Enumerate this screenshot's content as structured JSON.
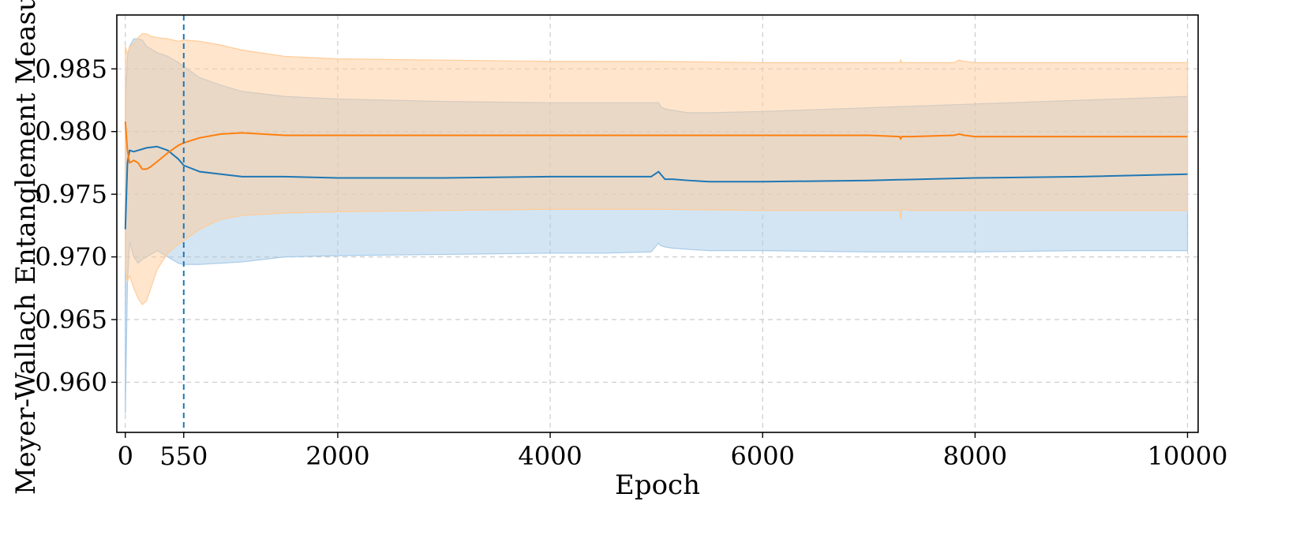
{
  "chart_data": {
    "type": "line",
    "title": "",
    "xlabel": "Epoch",
    "ylabel": "Meyer-Wallach Entanglement Measure",
    "xlim": [
      -80,
      10100
    ],
    "ylim": [
      0.956,
      0.9893
    ],
    "x_ticks": [
      0,
      550,
      2000,
      4000,
      6000,
      8000,
      10000
    ],
    "x_tick_labels": [
      "0",
      "550",
      "2000",
      "4000",
      "6000",
      "8000",
      "10000"
    ],
    "y_ticks": [
      0.96,
      0.965,
      0.97,
      0.975,
      0.98,
      0.985
    ],
    "y_tick_labels": [
      "0.960",
      "0.965",
      "0.970",
      "0.975",
      "0.980",
      "0.985"
    ],
    "grid": true,
    "vline": {
      "x": 550,
      "color": "#1f77b4",
      "style": "dashed"
    },
    "series": [
      {
        "color": "#1f77b4",
        "band_color": "#a8cbe8",
        "x": [
          0,
          20,
          40,
          80,
          120,
          160,
          200,
          300,
          400,
          500,
          550,
          700,
          900,
          1100,
          1500,
          2000,
          3000,
          4000,
          4500,
          4950,
          5020,
          5040,
          5080,
          5150,
          5300,
          5500,
          6000,
          7000,
          8000,
          9000,
          10000
        ],
        "mean": [
          0.9722,
          0.9775,
          0.9785,
          0.9784,
          0.9785,
          0.9786,
          0.9787,
          0.9788,
          0.9785,
          0.9778,
          0.9773,
          0.9768,
          0.9766,
          0.9764,
          0.9764,
          0.9763,
          0.9763,
          0.9764,
          0.9764,
          0.9764,
          0.9768,
          0.9766,
          0.9762,
          0.9762,
          0.9761,
          0.976,
          0.976,
          0.9761,
          0.9763,
          0.9764,
          0.9766
        ],
        "upper": [
          0.982,
          0.986,
          0.9868,
          0.9874,
          0.9874,
          0.9873,
          0.9868,
          0.9863,
          0.986,
          0.9855,
          0.9852,
          0.9843,
          0.9837,
          0.9832,
          0.9828,
          0.9826,
          0.9824,
          0.9823,
          0.9823,
          0.9823,
          0.9823,
          0.982,
          0.9818,
          0.9817,
          0.9815,
          0.9815,
          0.9816,
          0.9819,
          0.9822,
          0.9825,
          0.9828
        ],
        "lower": [
          0.9575,
          0.968,
          0.9712,
          0.97,
          0.9695,
          0.9698,
          0.97,
          0.9705,
          0.97,
          0.9695,
          0.9694,
          0.9694,
          0.9695,
          0.9696,
          0.97,
          0.9701,
          0.9702,
          0.9703,
          0.9703,
          0.9704,
          0.9711,
          0.9709,
          0.9708,
          0.9707,
          0.9706,
          0.9705,
          0.9705,
          0.9704,
          0.9704,
          0.9705,
          0.9705
        ]
      },
      {
        "color": "#ff7f0e",
        "band_color": "#ffcc99",
        "x": [
          0,
          20,
          40,
          80,
          120,
          160,
          200,
          240,
          300,
          400,
          500,
          550,
          700,
          900,
          1100,
          1500,
          2000,
          3000,
          4000,
          5000,
          6000,
          7000,
          7290,
          7300,
          7310,
          7400,
          7800,
          7850,
          7900,
          8000,
          9000,
          10000
        ],
        "mean": [
          0.9808,
          0.9785,
          0.9775,
          0.9777,
          0.9775,
          0.977,
          0.977,
          0.9772,
          0.9776,
          0.9783,
          0.9789,
          0.9791,
          0.9795,
          0.9798,
          0.9799,
          0.9797,
          0.9797,
          0.9797,
          0.9797,
          0.9797,
          0.9797,
          0.9797,
          0.9796,
          0.9794,
          0.9796,
          0.9796,
          0.9797,
          0.9798,
          0.9797,
          0.9796,
          0.9796,
          0.9796
        ],
        "upper": [
          0.9868,
          0.9862,
          0.9868,
          0.987,
          0.9875,
          0.9878,
          0.9878,
          0.9876,
          0.9875,
          0.9874,
          0.9872,
          0.9873,
          0.9872,
          0.9869,
          0.9865,
          0.986,
          0.9858,
          0.9857,
          0.9856,
          0.9856,
          0.9855,
          0.9855,
          0.9855,
          0.9857,
          0.9855,
          0.9855,
          0.9855,
          0.9857,
          0.9856,
          0.9855,
          0.9855,
          0.9855
        ],
        "lower": [
          0.969,
          0.968,
          0.9685,
          0.9675,
          0.9667,
          0.9662,
          0.9665,
          0.9675,
          0.969,
          0.9703,
          0.971,
          0.9713,
          0.9722,
          0.973,
          0.9733,
          0.9735,
          0.9736,
          0.9737,
          0.9738,
          0.9738,
          0.9737,
          0.9737,
          0.9737,
          0.973,
          0.9738,
          0.9737,
          0.9737,
          0.9737,
          0.9737,
          0.9737,
          0.9737,
          0.9737
        ]
      }
    ]
  }
}
